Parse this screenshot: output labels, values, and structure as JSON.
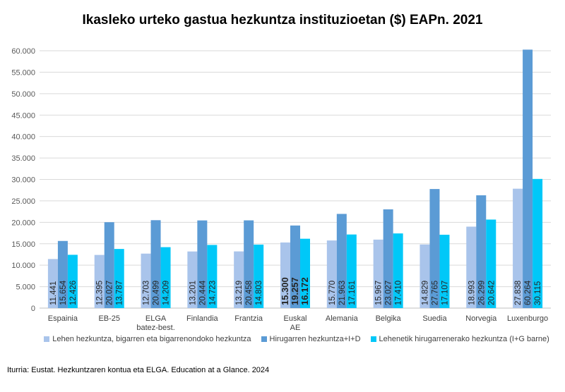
{
  "chart_data": {
    "type": "bar",
    "title": "Ikasleko urteko gastua hezkuntza instituzioetan ($) EAPn. 2021",
    "categories": [
      "Espainia",
      "EB-25",
      "ELGA batez-best.",
      "Finlandia",
      "Frantzia",
      "Euskal AE",
      "Alemania",
      "Belgika",
      "Suedia",
      "Norvegia",
      "Luxenburgo"
    ],
    "series": [
      {
        "name": "Lehen hezkuntza, bigarren eta bigarrenondoko hezkuntza",
        "color": "#a9c4eb",
        "values": [
          11441,
          12395,
          12703,
          13201,
          13219,
          15300,
          15770,
          15967,
          14829,
          18993,
          27838
        ],
        "labels": [
          "11.441",
          "12.395",
          "12.703",
          "13.201",
          "13.219",
          "15.300",
          "15.770",
          "15.967",
          "14.829",
          "18.993",
          "27.838"
        ]
      },
      {
        "name": "Hirugarren hezkuntza+I+D",
        "color": "#5b9bd5",
        "values": [
          15654,
          20027,
          20499,
          20444,
          20458,
          19257,
          21963,
          23027,
          27765,
          26299,
          60264
        ],
        "labels": [
          "15.654",
          "20.027",
          "20.499",
          "20.444",
          "20.458",
          "19.257",
          "21.963",
          "23.027",
          "27.765",
          "26.299",
          "60.264"
        ]
      },
      {
        "name": "Lehenetik hirugarrenerako hezkuntza (I+G barne)",
        "color": "#00c8f8",
        "values": [
          12426,
          13787,
          14209,
          14723,
          14803,
          16172,
          17161,
          17410,
          17107,
          20642,
          30115
        ],
        "labels": [
          "12.426",
          "13.787",
          "14.209",
          "14.723",
          "14.803",
          "16.172",
          "17.161",
          "17.410",
          "17.107",
          "20.642",
          "30.115"
        ]
      }
    ],
    "highlight_category": "Euskal AE",
    "ylim": [
      0,
      60000
    ],
    "yticks": [
      0,
      5000,
      10000,
      15000,
      20000,
      25000,
      30000,
      35000,
      40000,
      45000,
      50000,
      55000,
      60000
    ],
    "ytick_labels": [
      "0",
      "5.000",
      "10.000",
      "15.000",
      "20.000",
      "25.000",
      "30.000",
      "35.000",
      "40.000",
      "45.000",
      "50.000",
      "55.000",
      "60.000"
    ],
    "grid": true,
    "legend_position": "bottom",
    "source": "Iturria: Eustat. Hezkuntzaren kontua eta ELGA. Education at a Glance. 2024"
  }
}
